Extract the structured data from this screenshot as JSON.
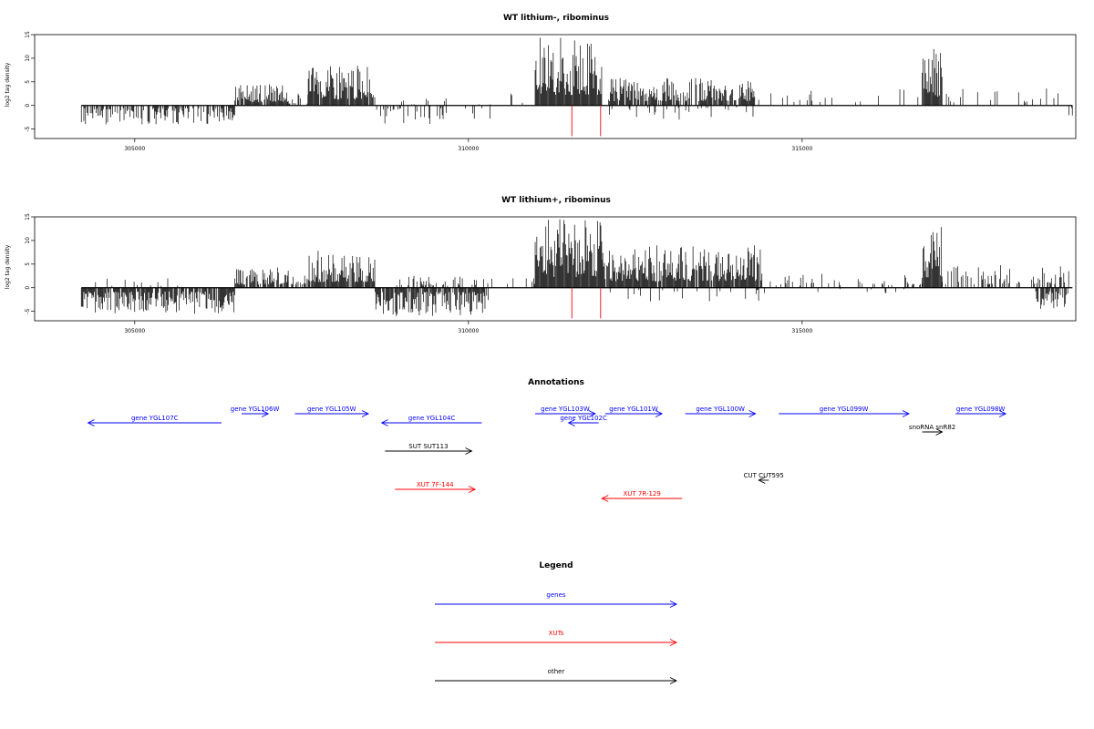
{
  "chart_data": [
    {
      "type": "bar",
      "title": "WT lithium-, ribominus",
      "ylabel": "log2 tag density",
      "xlim": [
        303500,
        319100
      ],
      "ylim": [
        -7,
        15
      ],
      "yticks": [
        -5,
        0,
        5,
        10,
        15
      ],
      "xticks": [
        305000,
        310000,
        315000
      ],
      "grid": false,
      "segments": [
        {
          "start": 304200,
          "end": 306500,
          "sign": -1,
          "max": 4.0,
          "density": 0.55
        },
        {
          "start": 306500,
          "end": 307300,
          "sign": 1,
          "max": 4.5,
          "density": 0.85
        },
        {
          "start": 307300,
          "end": 307600,
          "sign": 1,
          "max": 2.5,
          "density": 0.35
        },
        {
          "start": 307600,
          "end": 308600,
          "sign": 1,
          "max": 8.5,
          "density": 0.95
        },
        {
          "start": 308600,
          "end": 310500,
          "sign": -1,
          "max": 4.0,
          "density": 0.18
        },
        {
          "start": 309000,
          "end": 310400,
          "sign": 1,
          "max": 1.5,
          "density": 0.08
        },
        {
          "start": 310500,
          "end": 311000,
          "sign": 1,
          "max": 2.5,
          "density": 0.12
        },
        {
          "start": 311000,
          "end": 312000,
          "sign": 1,
          "max": 14.5,
          "density": 1.0
        },
        {
          "start": 312100,
          "end": 314300,
          "sign": 1,
          "max": 6.0,
          "density": 0.8
        },
        {
          "start": 312100,
          "end": 314300,
          "sign": -1,
          "max": 3.0,
          "density": 0.15
        },
        {
          "start": 314300,
          "end": 316800,
          "sign": 1,
          "max": 4.0,
          "density": 0.1
        },
        {
          "start": 316800,
          "end": 317100,
          "sign": 1,
          "max": 12.0,
          "density": 1.0
        },
        {
          "start": 317100,
          "end": 319000,
          "sign": 1,
          "max": 4.0,
          "density": 0.12
        },
        {
          "start": 318950,
          "end": 319050,
          "sign": -1,
          "max": 3.0,
          "density": 0.5
        }
      ],
      "markers": [
        311550,
        311980
      ],
      "marker_color": "#e8202a"
    },
    {
      "type": "bar",
      "title": "WT lithium+, ribominus",
      "ylabel": "log2 tag density",
      "xlim": [
        303500,
        319100
      ],
      "ylim": [
        -7,
        15
      ],
      "yticks": [
        -5,
        0,
        5,
        10,
        15
      ],
      "xticks": [
        305000,
        310000,
        315000
      ],
      "grid": false,
      "segments": [
        {
          "start": 304200,
          "end": 306500,
          "sign": -1,
          "max": 5.5,
          "density": 0.9
        },
        {
          "start": 304400,
          "end": 305800,
          "sign": 1,
          "max": 2.5,
          "density": 0.1
        },
        {
          "start": 306500,
          "end": 307300,
          "sign": 1,
          "max": 4.5,
          "density": 0.85
        },
        {
          "start": 307300,
          "end": 307600,
          "sign": 1,
          "max": 3.0,
          "density": 0.4
        },
        {
          "start": 307600,
          "end": 308600,
          "sign": 1,
          "max": 8.0,
          "density": 0.95
        },
        {
          "start": 308600,
          "end": 310300,
          "sign": -1,
          "max": 6.0,
          "density": 0.85
        },
        {
          "start": 308900,
          "end": 310300,
          "sign": 1,
          "max": 2.5,
          "density": 0.35
        },
        {
          "start": 310300,
          "end": 311000,
          "sign": 1,
          "max": 2.5,
          "density": 0.2
        },
        {
          "start": 311000,
          "end": 312000,
          "sign": 1,
          "max": 14.5,
          "density": 1.0
        },
        {
          "start": 312000,
          "end": 314400,
          "sign": 1,
          "max": 9.0,
          "density": 0.95
        },
        {
          "start": 312000,
          "end": 314400,
          "sign": -1,
          "max": 3.0,
          "density": 0.15
        },
        {
          "start": 314400,
          "end": 316800,
          "sign": 1,
          "max": 3.0,
          "density": 0.15
        },
        {
          "start": 314400,
          "end": 316800,
          "sign": -1,
          "max": 2.0,
          "density": 0.05
        },
        {
          "start": 316800,
          "end": 317100,
          "sign": 1,
          "max": 13.0,
          "density": 1.0
        },
        {
          "start": 317100,
          "end": 319000,
          "sign": 1,
          "max": 5.0,
          "density": 0.45
        },
        {
          "start": 318500,
          "end": 319000,
          "sign": -1,
          "max": 5.0,
          "density": 0.7
        }
      ],
      "markers": [
        311550,
        311980
      ],
      "marker_color": "#e8202a"
    }
  ],
  "annotations": {
    "title": "Annotations",
    "items": [
      {
        "label": "gene YGL107C",
        "start": 306300,
        "end": 304300,
        "row": 2,
        "color": "#0000ff"
      },
      {
        "label": "gene YGL106W",
        "start": 306600,
        "end": 307000,
        "row": 1,
        "color": "#0000ff"
      },
      {
        "label": "gene YGL105W",
        "start": 307400,
        "end": 308500,
        "row": 1,
        "color": "#0000ff"
      },
      {
        "label": "gene YGL104C",
        "start": 310200,
        "end": 308700,
        "row": 2,
        "color": "#0000ff"
      },
      {
        "label": "gene YGL103W",
        "start": 311000,
        "end": 311900,
        "row": 1,
        "color": "#0000ff"
      },
      {
        "label": "gene YGL102C",
        "start": 311950,
        "end": 311500,
        "row": 2,
        "color": "#0000ff"
      },
      {
        "label": "gene YGL101W",
        "start": 312050,
        "end": 312900,
        "row": 1,
        "color": "#0000ff"
      },
      {
        "label": "gene YGL100W",
        "start": 313250,
        "end": 314300,
        "row": 1,
        "color": "#0000ff"
      },
      {
        "label": "gene YGL099W",
        "start": 314650,
        "end": 316600,
        "row": 1,
        "color": "#0000ff"
      },
      {
        "label": "gene YGL098W",
        "start": 317300,
        "end": 318050,
        "row": 1,
        "color": "#0000ff"
      },
      {
        "label": "snoRNA snR82",
        "start": 316800,
        "end": 317100,
        "row": 3,
        "color": "#000000"
      },
      {
        "label": "SUT SUT113",
        "start": 308750,
        "end": 310050,
        "row": 4,
        "color": "#000000"
      },
      {
        "label": "CUT CUT595",
        "start": 314500,
        "end": 314350,
        "row": 5,
        "color": "#000000"
      },
      {
        "label": "XUT 7F-144",
        "start": 308900,
        "end": 310100,
        "row": 6,
        "color": "#ff0000"
      },
      {
        "label": "XUT 7R-129",
        "start": 313200,
        "end": 312000,
        "row": 7,
        "color": "#ff0000"
      }
    ]
  },
  "legend": {
    "title": "Legend",
    "items": [
      {
        "label": "genes",
        "color": "#0000ff"
      },
      {
        "label": "XUTs",
        "color": "#ff0000"
      },
      {
        "label": "other",
        "color": "#000000"
      }
    ]
  }
}
